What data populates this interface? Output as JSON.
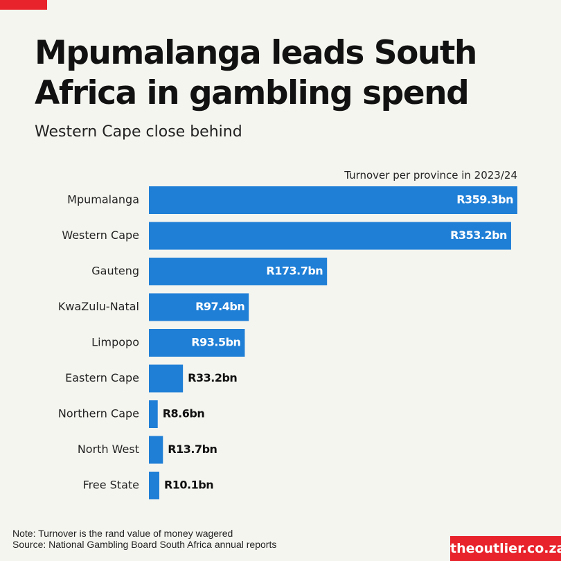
{
  "header": {
    "title": "Mpumalanga leads South Africa in gambling spend",
    "subtitle": "Western Cape close behind"
  },
  "footer": {
    "note": "Note: Turnover is the rand value of money wagered",
    "source": "Source: National Gambling Board South Africa annual reports",
    "brand": "theoutlier.co.za"
  },
  "colors": {
    "bar": "#1f7fd6",
    "accent": "#e8232b",
    "background": "#f5f5f0"
  },
  "chart_data": {
    "type": "bar",
    "orientation": "horizontal",
    "value_header": "Turnover per province in 2023/24",
    "categories": [
      "Mpumalanga",
      "Western Cape",
      "Gauteng",
      "KwaZulu-Natal",
      "Limpopo",
      "Eastern Cape",
      "Northern Cape",
      "North West",
      "Free State"
    ],
    "values": [
      359.3,
      353.2,
      173.7,
      97.4,
      93.5,
      33.2,
      8.6,
      13.7,
      10.1
    ],
    "data_labels": [
      "R359.3bn",
      "R353.2bn",
      "R173.7bn",
      "R97.4bn",
      "R93.5bn",
      "R33.2bn",
      "R8.6bn",
      "R13.7bn",
      "R10.1bn"
    ],
    "unit": "R bn",
    "xlim": [
      0,
      359.3
    ],
    "grid": false,
    "legend": "none"
  }
}
